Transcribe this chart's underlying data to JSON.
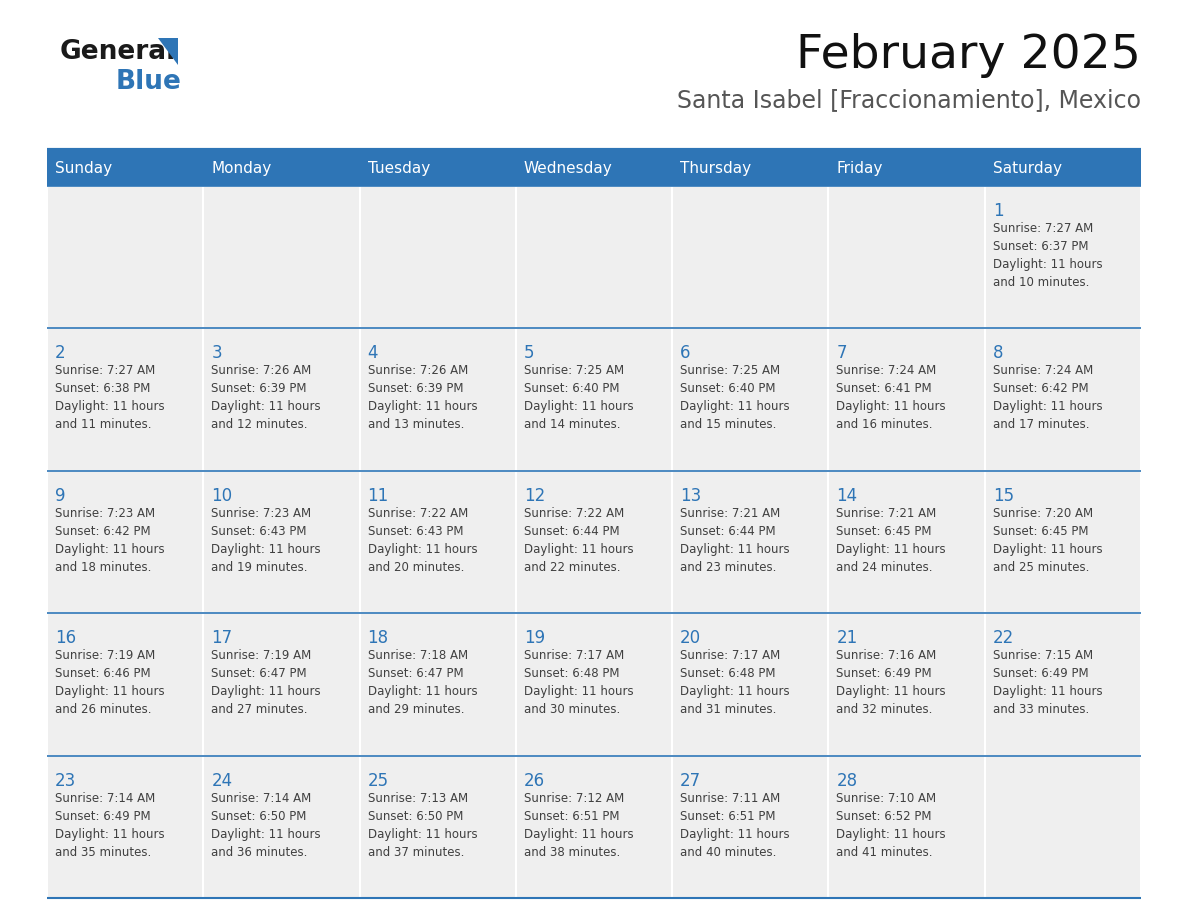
{
  "title": "February 2025",
  "subtitle": "Santa Isabel [Fraccionamiento], Mexico",
  "days_of_week": [
    "Sunday",
    "Monday",
    "Tuesday",
    "Wednesday",
    "Thursday",
    "Friday",
    "Saturday"
  ],
  "header_bg": "#2E75B6",
  "header_text": "#FFFFFF",
  "cell_bg": "#EFEFEF",
  "cell_text": "#404040",
  "day_num_color": "#2E75B6",
  "border_color": "#2E75B6",
  "weeks": [
    [
      null,
      null,
      null,
      null,
      null,
      null,
      {
        "day": 1,
        "sunrise": "7:27 AM",
        "sunset": "6:37 PM",
        "daylight_line1": "Daylight: 11 hours",
        "daylight_line2": "and 10 minutes."
      }
    ],
    [
      {
        "day": 2,
        "sunrise": "7:27 AM",
        "sunset": "6:38 PM",
        "daylight_line1": "Daylight: 11 hours",
        "daylight_line2": "and 11 minutes."
      },
      {
        "day": 3,
        "sunrise": "7:26 AM",
        "sunset": "6:39 PM",
        "daylight_line1": "Daylight: 11 hours",
        "daylight_line2": "and 12 minutes."
      },
      {
        "day": 4,
        "sunrise": "7:26 AM",
        "sunset": "6:39 PM",
        "daylight_line1": "Daylight: 11 hours",
        "daylight_line2": "and 13 minutes."
      },
      {
        "day": 5,
        "sunrise": "7:25 AM",
        "sunset": "6:40 PM",
        "daylight_line1": "Daylight: 11 hours",
        "daylight_line2": "and 14 minutes."
      },
      {
        "day": 6,
        "sunrise": "7:25 AM",
        "sunset": "6:40 PM",
        "daylight_line1": "Daylight: 11 hours",
        "daylight_line2": "and 15 minutes."
      },
      {
        "day": 7,
        "sunrise": "7:24 AM",
        "sunset": "6:41 PM",
        "daylight_line1": "Daylight: 11 hours",
        "daylight_line2": "and 16 minutes."
      },
      {
        "day": 8,
        "sunrise": "7:24 AM",
        "sunset": "6:42 PM",
        "daylight_line1": "Daylight: 11 hours",
        "daylight_line2": "and 17 minutes."
      }
    ],
    [
      {
        "day": 9,
        "sunrise": "7:23 AM",
        "sunset": "6:42 PM",
        "daylight_line1": "Daylight: 11 hours",
        "daylight_line2": "and 18 minutes."
      },
      {
        "day": 10,
        "sunrise": "7:23 AM",
        "sunset": "6:43 PM",
        "daylight_line1": "Daylight: 11 hours",
        "daylight_line2": "and 19 minutes."
      },
      {
        "day": 11,
        "sunrise": "7:22 AM",
        "sunset": "6:43 PM",
        "daylight_line1": "Daylight: 11 hours",
        "daylight_line2": "and 20 minutes."
      },
      {
        "day": 12,
        "sunrise": "7:22 AM",
        "sunset": "6:44 PM",
        "daylight_line1": "Daylight: 11 hours",
        "daylight_line2": "and 22 minutes."
      },
      {
        "day": 13,
        "sunrise": "7:21 AM",
        "sunset": "6:44 PM",
        "daylight_line1": "Daylight: 11 hours",
        "daylight_line2": "and 23 minutes."
      },
      {
        "day": 14,
        "sunrise": "7:21 AM",
        "sunset": "6:45 PM",
        "daylight_line1": "Daylight: 11 hours",
        "daylight_line2": "and 24 minutes."
      },
      {
        "day": 15,
        "sunrise": "7:20 AM",
        "sunset": "6:45 PM",
        "daylight_line1": "Daylight: 11 hours",
        "daylight_line2": "and 25 minutes."
      }
    ],
    [
      {
        "day": 16,
        "sunrise": "7:19 AM",
        "sunset": "6:46 PM",
        "daylight_line1": "Daylight: 11 hours",
        "daylight_line2": "and 26 minutes."
      },
      {
        "day": 17,
        "sunrise": "7:19 AM",
        "sunset": "6:47 PM",
        "daylight_line1": "Daylight: 11 hours",
        "daylight_line2": "and 27 minutes."
      },
      {
        "day": 18,
        "sunrise": "7:18 AM",
        "sunset": "6:47 PM",
        "daylight_line1": "Daylight: 11 hours",
        "daylight_line2": "and 29 minutes."
      },
      {
        "day": 19,
        "sunrise": "7:17 AM",
        "sunset": "6:48 PM",
        "daylight_line1": "Daylight: 11 hours",
        "daylight_line2": "and 30 minutes."
      },
      {
        "day": 20,
        "sunrise": "7:17 AM",
        "sunset": "6:48 PM",
        "daylight_line1": "Daylight: 11 hours",
        "daylight_line2": "and 31 minutes."
      },
      {
        "day": 21,
        "sunrise": "7:16 AM",
        "sunset": "6:49 PM",
        "daylight_line1": "Daylight: 11 hours",
        "daylight_line2": "and 32 minutes."
      },
      {
        "day": 22,
        "sunrise": "7:15 AM",
        "sunset": "6:49 PM",
        "daylight_line1": "Daylight: 11 hours",
        "daylight_line2": "and 33 minutes."
      }
    ],
    [
      {
        "day": 23,
        "sunrise": "7:14 AM",
        "sunset": "6:49 PM",
        "daylight_line1": "Daylight: 11 hours",
        "daylight_line2": "and 35 minutes."
      },
      {
        "day": 24,
        "sunrise": "7:14 AM",
        "sunset": "6:50 PM",
        "daylight_line1": "Daylight: 11 hours",
        "daylight_line2": "and 36 minutes."
      },
      {
        "day": 25,
        "sunrise": "7:13 AM",
        "sunset": "6:50 PM",
        "daylight_line1": "Daylight: 11 hours",
        "daylight_line2": "and 37 minutes."
      },
      {
        "day": 26,
        "sunrise": "7:12 AM",
        "sunset": "6:51 PM",
        "daylight_line1": "Daylight: 11 hours",
        "daylight_line2": "and 38 minutes."
      },
      {
        "day": 27,
        "sunrise": "7:11 AM",
        "sunset": "6:51 PM",
        "daylight_line1": "Daylight: 11 hours",
        "daylight_line2": "and 40 minutes."
      },
      {
        "day": 28,
        "sunrise": "7:10 AM",
        "sunset": "6:52 PM",
        "daylight_line1": "Daylight: 11 hours",
        "daylight_line2": "and 41 minutes."
      },
      null
    ]
  ]
}
